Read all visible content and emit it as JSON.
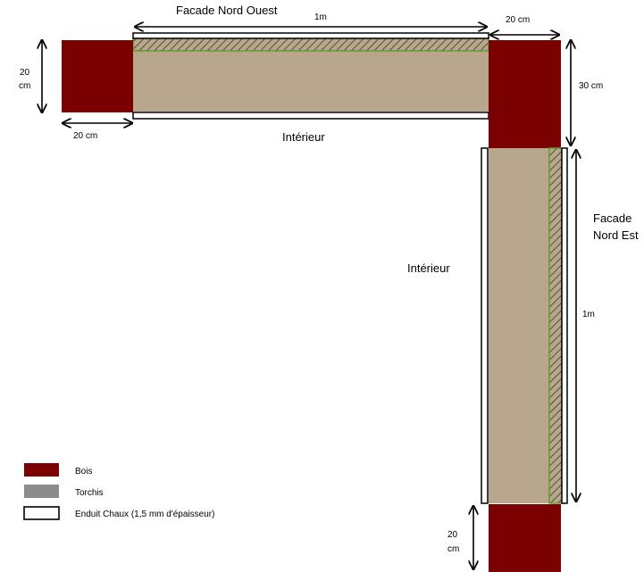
{
  "labels": {
    "facade_nord_ouest": "Facade Nord Ouest",
    "facade_nord_est_line1": "Facade",
    "facade_nord_est_line2": "Nord Est",
    "interieur_top": "Intérieur",
    "interieur_right": "Intérieur"
  },
  "dimensions": {
    "top_length": "1m",
    "right_length": "1m",
    "corner_width": "20 cm",
    "left_post_width": "20 cm",
    "left_post_height_line1": "20",
    "left_post_height_line2": "cm",
    "corner_post_height": "30 cm",
    "bottom_post_height_line1": "20",
    "bottom_post_height_line2": "cm"
  },
  "legend": {
    "items": [
      {
        "label": "Bois",
        "color": "#7b0000"
      },
      {
        "label": "Torchis",
        "color": "#8c8c8c"
      },
      {
        "label": "Enduit Chaux (1,5 mm d'épaisseur)",
        "color": "#ffffff"
      }
    ]
  },
  "colors": {
    "bois": "#7b0000",
    "torchis_fill": "#b8a78c",
    "hatch_green": "#5aa02c",
    "enduit": "#ffffff"
  }
}
